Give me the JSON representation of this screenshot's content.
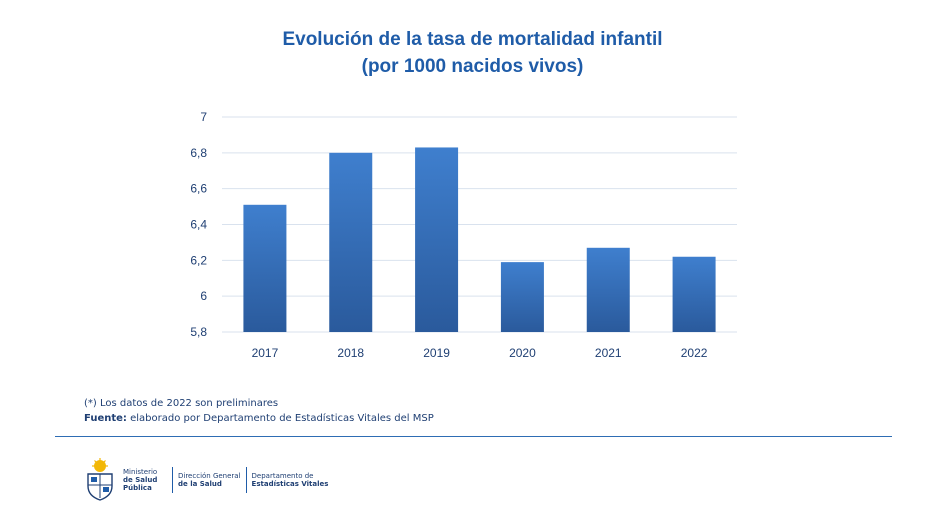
{
  "title_line1": "Evolución de la tasa de mortalidad infantil",
  "title_line2": "(por 1000 nacidos vivos)",
  "chart_data": {
    "type": "bar",
    "title": "Evolución de la tasa de mortalidad infantil (por 1000 nacidos vivos)",
    "categories": [
      "2017",
      "2018",
      "2019",
      "2020",
      "2021",
      "2022"
    ],
    "values": [
      6.51,
      6.8,
      6.83,
      6.19,
      6.27,
      6.22
    ],
    "ylim": [
      5.8,
      7
    ],
    "yticks": [
      "5,8",
      "6",
      "6,2",
      "6,4",
      "6,6",
      "6,8",
      "7"
    ],
    "ytick_values": [
      5.8,
      6.0,
      6.2,
      6.4,
      6.6,
      6.8,
      7.0
    ],
    "xlabel": "",
    "ylabel": "",
    "grid": true,
    "bar_color_top": "#3f7fce",
    "bar_color_bottom": "#2a5a9c"
  },
  "notes": {
    "preliminary": "(*) Los datos de 2022 son preliminares",
    "source_label": "Fuente:",
    "source_text": " elaborado por Departamento de Estadísticas Vitales del MSP"
  },
  "footer": {
    "ministry_line1": "Ministerio",
    "ministry_line2": "de Salud",
    "ministry_line3": "Pública",
    "direction_line1": "Dirección General",
    "direction_line2": "de la Salud",
    "department_line1": "Departamento de",
    "department_line2": "Estadísticas Vitales"
  },
  "colors": {
    "accent": "#1f5ca8",
    "text_dark": "#1f3f73",
    "grid": "#d9e2ee"
  }
}
